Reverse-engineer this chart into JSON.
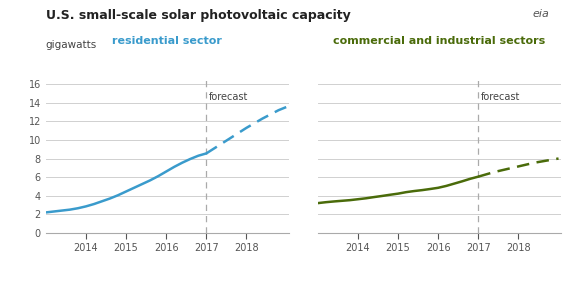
{
  "title": "U.S. small-scale solar photovoltaic capacity",
  "ylabel": "gigawatts",
  "background_color": "#ffffff",
  "grid_color": "#d0d0d0",
  "res_color": "#3a9bcc",
  "com_color": "#4a6b0a",
  "res_label": "residential sector",
  "com_label": "commercial and industrial sectors",
  "forecast_label": "forecast",
  "res_solid_x": [
    2013.0,
    2013.2,
    2013.4,
    2013.6,
    2013.8,
    2014.0,
    2014.2,
    2014.4,
    2014.6,
    2014.8,
    2015.0,
    2015.2,
    2015.4,
    2015.6,
    2015.8,
    2016.0,
    2016.2,
    2016.4,
    2016.6,
    2016.8,
    2017.0
  ],
  "res_solid_y": [
    2.2,
    2.3,
    2.4,
    2.5,
    2.65,
    2.85,
    3.1,
    3.4,
    3.7,
    4.05,
    4.45,
    4.85,
    5.25,
    5.65,
    6.1,
    6.6,
    7.1,
    7.55,
    7.95,
    8.3,
    8.55
  ],
  "res_dash_x": [
    2017.0,
    2017.2,
    2017.4,
    2017.6,
    2017.8,
    2018.0,
    2018.2,
    2018.4,
    2018.6,
    2018.8,
    2019.0
  ],
  "res_dash_y": [
    8.55,
    9.1,
    9.65,
    10.2,
    10.75,
    11.3,
    11.8,
    12.3,
    12.75,
    13.2,
    13.55
  ],
  "com_solid_x": [
    2013.0,
    2013.2,
    2013.4,
    2013.6,
    2013.8,
    2014.0,
    2014.2,
    2014.4,
    2014.6,
    2014.8,
    2015.0,
    2015.2,
    2015.4,
    2015.6,
    2015.8,
    2016.0,
    2016.2,
    2016.4,
    2016.6,
    2016.8,
    2017.0
  ],
  "com_solid_y": [
    3.2,
    3.3,
    3.38,
    3.45,
    3.52,
    3.62,
    3.72,
    3.85,
    3.97,
    4.1,
    4.22,
    4.38,
    4.5,
    4.6,
    4.72,
    4.85,
    5.05,
    5.3,
    5.55,
    5.82,
    6.05
  ],
  "com_dash_x": [
    2017.0,
    2017.2,
    2017.4,
    2017.6,
    2017.8,
    2018.0,
    2018.2,
    2018.4,
    2018.6,
    2018.8,
    2019.0
  ],
  "com_dash_y": [
    6.05,
    6.3,
    6.55,
    6.75,
    6.95,
    7.15,
    7.35,
    7.55,
    7.7,
    7.85,
    8.0
  ],
  "xlim": [
    2013.0,
    2019.05
  ],
  "ylim": [
    0,
    16.5
  ],
  "yticks": [
    0,
    2,
    4,
    6,
    8,
    10,
    12,
    14,
    16
  ],
  "xticks": [
    2014,
    2015,
    2016,
    2017,
    2018
  ],
  "forecast_x": 2017.0,
  "forecast_vline_color": "#aaaaaa",
  "spine_color": "#aaaaaa",
  "tick_color": "#555555",
  "title_fontsize": 9,
  "label_fontsize": 7,
  "sector_fontsize": 8,
  "linewidth": 1.8,
  "eia_color": "#555555"
}
